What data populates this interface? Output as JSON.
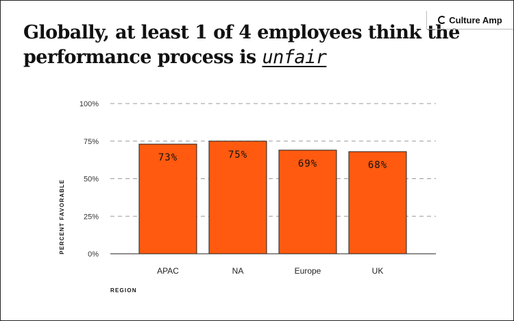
{
  "header": {
    "title_main": "Globally, at least 1 of 4 employees think the performance process is ",
    "title_highlight": "unfair",
    "logo_text": "Culture Amp"
  },
  "chart_data": {
    "type": "bar",
    "categories": [
      "APAC",
      "NA",
      "Europe",
      "UK"
    ],
    "values": [
      73,
      75,
      69,
      68
    ],
    "data_labels": [
      "73%",
      "75%",
      "69%",
      "68%"
    ],
    "xlabel": "REGION",
    "ylabel": "PERCENT FAVORABLE",
    "ylim": [
      0,
      100
    ],
    "yticks": [
      "0%",
      "25%",
      "50%",
      "75%",
      "100%"
    ],
    "grid": true,
    "bar_color": "#FF5A0F"
  }
}
